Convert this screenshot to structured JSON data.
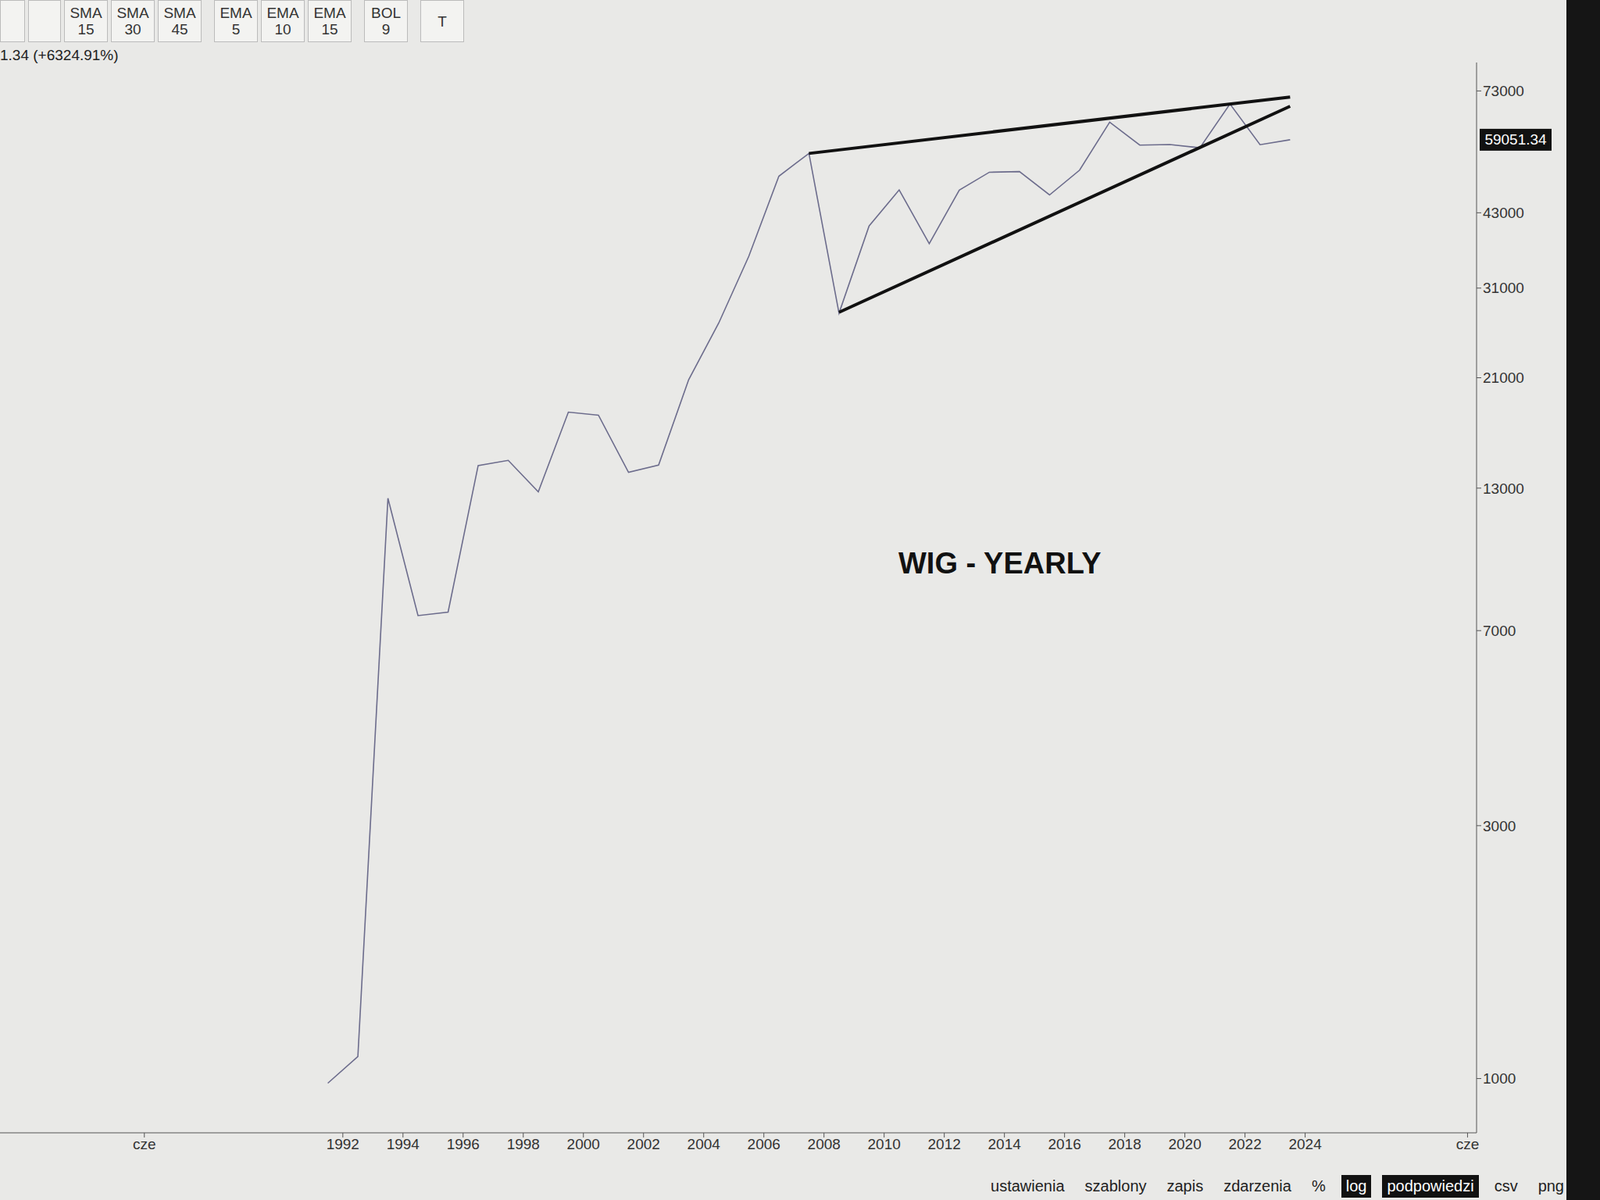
{
  "chart_data": {
    "type": "line",
    "title": "WIG - YEARLY",
    "subtitle": "1.34 (+6324.91%)",
    "x": [
      1991.5,
      1992.5,
      1993.5,
      1994.5,
      1995.5,
      1996.5,
      1997.5,
      1998.5,
      1999.5,
      2000.5,
      2001.5,
      2002.5,
      2003.5,
      2004.5,
      2005.5,
      2006.5,
      2007.5,
      2008.5,
      2009.5,
      2010.5,
      2011.5,
      2012.5,
      2013.5,
      2014.5,
      2015.5,
      2016.5,
      2017.5,
      2018.5,
      2019.5,
      2020.5,
      2021.5,
      2022.5,
      2023.5
    ],
    "values": [
      980,
      1100,
      12439,
      7473,
      7586,
      14343,
      14668,
      12796,
      18083,
      17848,
      13922,
      14367,
      20820,
      26636,
      35601,
      50412,
      55649,
      27800,
      40600,
      47490,
      37595,
      47461,
      51284,
      51416,
      46467,
      51754,
      63746,
      57690,
      57833,
      57026,
      69000,
      57800,
      59051.34
    ],
    "color": "#6c6c8c",
    "log": "y",
    "grid": false,
    "xlim": [
      1980.6,
      2029.7
    ],
    "xticks": [
      {
        "value": 1985.4,
        "label": "cze"
      },
      1992,
      1994,
      1996,
      1998,
      2000,
      2002,
      2004,
      2006,
      2008,
      2010,
      2012,
      2014,
      2016,
      2018,
      2020,
      2022,
      2024,
      {
        "value": 2029.4,
        "label": "cze"
      }
    ],
    "ylim": [
      790,
      82600
    ],
    "yticks": [
      1000,
      3000,
      7000,
      13000,
      21000,
      31000,
      43000,
      73000
    ],
    "last_value": 59051.34,
    "trendlines": [
      {
        "x": [
          2007.5,
          2023.5
        ],
        "values": [
          55649,
          71100
        ],
        "color": "#111111"
      },
      {
        "x": [
          2008.5,
          2023.5
        ],
        "values": [
          27900,
          68300
        ],
        "color": "#111111"
      }
    ],
    "toolbar": [
      {
        "name": "SMA",
        "period": 15
      },
      {
        "name": "SMA",
        "period": 30
      },
      {
        "name": "SMA",
        "period": 45
      },
      {
        "name": "EMA",
        "period": 5
      },
      {
        "name": "EMA",
        "period": 10
      },
      {
        "name": "EMA",
        "period": 15
      },
      {
        "name": "BOL",
        "period": 9
      },
      {
        "name": "T"
      }
    ],
    "menu": [
      "ustawienia",
      "szablony",
      "zapis",
      "zdarzenia",
      "%",
      "log",
      "podpowiedzi",
      "csv",
      "png"
    ],
    "menu_active": [
      "log",
      "podpowiedzi"
    ]
  }
}
